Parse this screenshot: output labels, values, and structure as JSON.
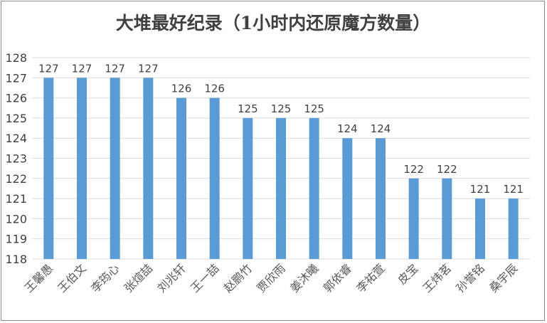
{
  "chart_data": {
    "type": "bar",
    "title": "大堆最好纪录（1小时内还原魔方数量）",
    "xlabel": "",
    "ylabel": "",
    "categories": [
      "王馨愚",
      "王伯文",
      "李筠心",
      "张煊喆",
      "刘兆轩",
      "王一喆",
      "赵鹏竹",
      "贾欣雨",
      "姜沐曦",
      "郭依睿",
      "李祐萱",
      "皮宝",
      "王炜茗",
      "孙誉铭",
      "桑宇辰"
    ],
    "values": [
      127,
      127,
      127,
      127,
      126,
      126,
      125,
      125,
      125,
      124,
      124,
      122,
      122,
      121,
      121
    ],
    "ylim": [
      118,
      128
    ],
    "yticks": [
      118,
      119,
      120,
      121,
      122,
      123,
      124,
      125,
      126,
      127,
      128
    ],
    "grid": true,
    "legend": "none",
    "data_labels": true,
    "colors": {
      "bar": "#5b9bd5",
      "grid": "#d9d9d9",
      "text": "#404040",
      "frame": "#8c8c8c"
    }
  }
}
